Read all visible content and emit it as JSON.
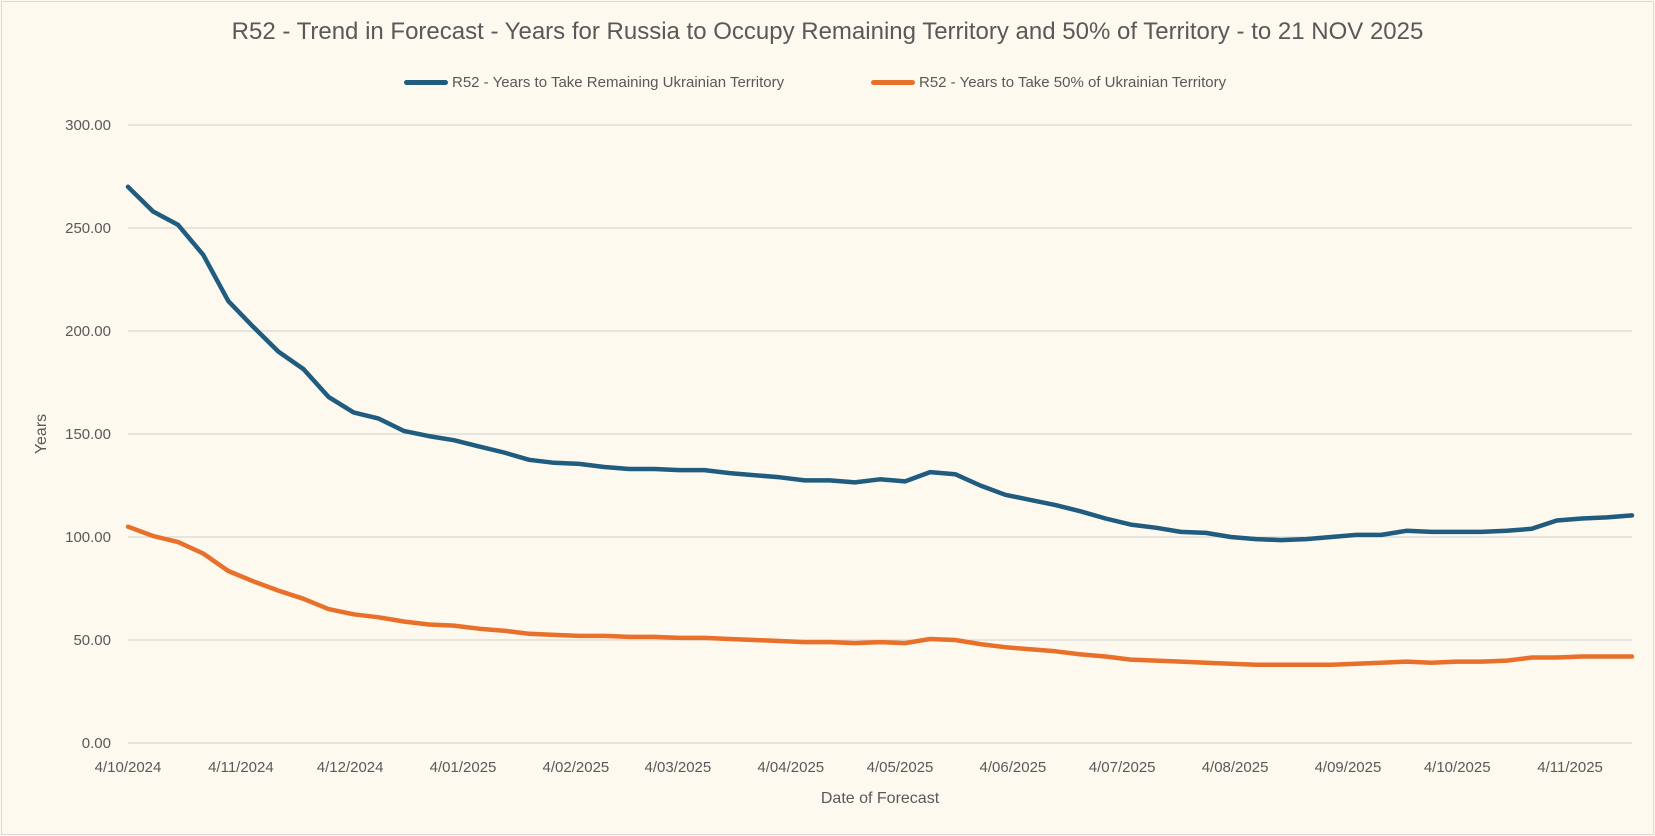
{
  "chart_data": {
    "type": "line",
    "title": "R52 - Trend in Forecast - Years for Russia to Occupy Remaining Territory and 50% of Territory - to 21 NOV 2025",
    "xlabel": "Date of Forecast",
    "ylabel": "Years",
    "ylim": [
      0,
      300
    ],
    "yticks": [
      "0.00",
      "50.00",
      "100.00",
      "150.00",
      "200.00",
      "250.00",
      "300.00"
    ],
    "xtick_labels": [
      "4/10/2024",
      "4/11/2024",
      "4/12/2024",
      "4/01/2025",
      "4/02/2025",
      "4/03/2025",
      "4/04/2025",
      "4/05/2025",
      "4/06/2025",
      "4/07/2025",
      "4/08/2025",
      "4/09/2025",
      "4/10/2025",
      "4/11/2025"
    ],
    "x_range": [
      "4/10/2024",
      "21/11/2025"
    ],
    "grid": true,
    "legend_position": "top",
    "series": [
      {
        "name": "R52 - Years to Take Remaining Ukrainian Territory",
        "color": "#1f5c80",
        "values": [
          270,
          258,
          251.5,
          237,
          214.5,
          202,
          190,
          181.5,
          168,
          160.5,
          157.5,
          151.5,
          149,
          147,
          144,
          141,
          137.5,
          136,
          135.5,
          134,
          133,
          133,
          132.5,
          132.5,
          131,
          130,
          129,
          127.5,
          127.5,
          126.5,
          128,
          127,
          131.5,
          130.5,
          125,
          120.5,
          118,
          115.5,
          112.5,
          109,
          106,
          104.5,
          102.5,
          102,
          100,
          99,
          98.5,
          99,
          100,
          101,
          101,
          103,
          102.5,
          102.5,
          102.5,
          103,
          104,
          108,
          109,
          109.5,
          110.5
        ]
      },
      {
        "name": "R52 - Years to Take  50% of Ukrainian Territory",
        "color": "#e8702a",
        "values": [
          105,
          100.5,
          97.5,
          92,
          83.5,
          78.5,
          74,
          70,
          65,
          62.5,
          61,
          59,
          57.5,
          57,
          55.5,
          54.5,
          53,
          52.5,
          52,
          52,
          51.5,
          51.5,
          51,
          51,
          50.5,
          50,
          49.5,
          49,
          49,
          48.5,
          49,
          48.5,
          50.5,
          50,
          48,
          46.5,
          45.5,
          44.5,
          43,
          42,
          40.5,
          40,
          39.5,
          39,
          38.5,
          38,
          38,
          38,
          38,
          38.5,
          39,
          39.5,
          39,
          39.5,
          39.5,
          40,
          41.5,
          41.5,
          42,
          42,
          42
        ]
      }
    ]
  }
}
